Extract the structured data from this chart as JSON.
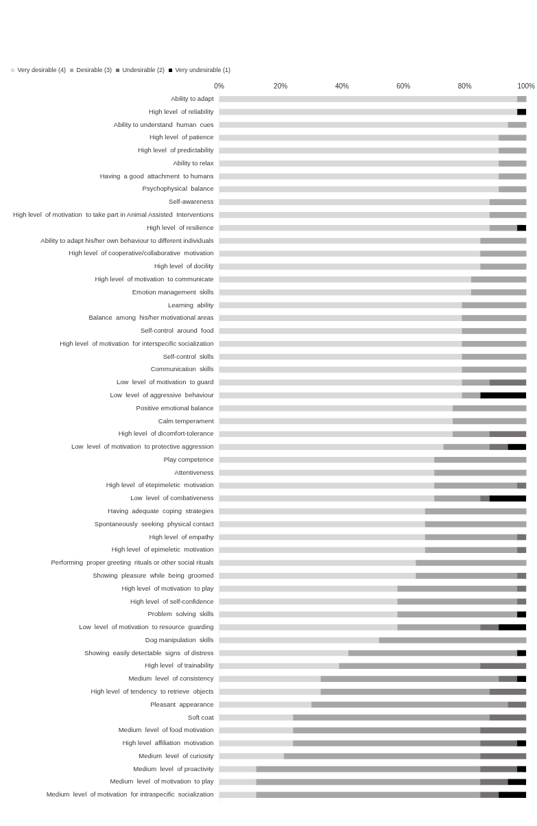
{
  "chart_data": {
    "type": "bar",
    "orientation": "horizontal",
    "stacked": true,
    "legend": "top",
    "grid": false,
    "xlim": [
      0,
      100
    ],
    "xticks": [
      {
        "value": 0,
        "label": "0%"
      },
      {
        "value": 20,
        "label": "20%"
      },
      {
        "value": 40,
        "label": "40%"
      },
      {
        "value": 60,
        "label": "60%"
      },
      {
        "value": 80,
        "label": "80%"
      },
      {
        "value": 100,
        "label": "100%"
      }
    ],
    "categories": [
      "Ability to adapt",
      "High level  of reliability",
      "Ability to understand  human  cues",
      "High level  of patience",
      "High level  of predictability",
      "Ability to relax",
      "Having  a good  attachment  to humans",
      "Psychophysical  balance",
      "Self-awareness",
      "High level  of motivation  to take part in Animal Assisted  Interventions",
      "High level  of resilience",
      "Ability to adapt his/her own behaviour to different individuals",
      "High level  of cooperative/collaborative  motivation",
      "High level  of docility",
      "High level  of motivation  to communicate",
      "Emotion management  skills",
      "Learning  ability",
      "Balance  among  his/her motivational areas",
      "Self-control  around  food",
      "High level  of motivation  for interspecific socialization",
      "Self-control  skills",
      "Communication  skills",
      "Low  level  of motivation  to guard",
      "Low  level  of aggressive  behaviour",
      "Positive emotional balance",
      "Calm temperament",
      "High level  of dicomfort-tolerance",
      "Low  level  of motivation  to protective aggression",
      "Play competence",
      "Attentiveness",
      "High level  of etepimeletic  motivation",
      "Low  level  of combativeness",
      "Having  adequate  coping  strategies",
      "Spontaneously  seeking  physical contact",
      "High level  of empathy",
      "High level  of epimeletic  motivation",
      "Performing  proper greeting  rituals or other social rituals",
      "Showing  pleasure  while  being  groomed",
      "High level  of motivation  to play",
      "High level  of self-confidence",
      "Problem  solving  skills",
      "Low  level  of motivation  to resource  guarding",
      "Dog manipulation  skills",
      "Showing  easily detectable  signs  of distress",
      "High level  of trainability",
      "Medium  level  of consistency",
      "High level  of tendency  to retrieve  objects",
      "Pleasant  appearance",
      "Soft coat",
      "Medium  level  of food motivation",
      "High level  affiliation  motivation",
      "Medium  level  of curiosity",
      "Medium  level  of proactivity",
      "Medium  level  of motivation  to play",
      "Medium  level  of motivation  for intraspecific  socialization"
    ],
    "series": [
      {
        "name": "Very desirable (4)",
        "color": "#d9d9d9",
        "values": [
          97,
          97,
          94,
          91,
          91,
          91,
          91,
          91,
          88,
          88,
          88,
          85,
          85,
          85,
          82,
          82,
          79,
          79,
          79,
          79,
          79,
          79,
          79,
          79,
          76,
          76,
          76,
          73,
          70,
          70,
          70,
          70,
          67,
          67,
          67,
          67,
          64,
          64,
          58,
          58,
          58,
          58,
          52,
          42,
          39,
          33,
          33,
          30,
          24,
          24,
          24,
          21,
          12,
          12,
          12
        ]
      },
      {
        "name": "Desirable (3)",
        "color": "#a6a6a6",
        "values": [
          3,
          0,
          6,
          9,
          9,
          9,
          9,
          9,
          12,
          12,
          9,
          15,
          15,
          15,
          18,
          18,
          21,
          21,
          21,
          21,
          21,
          21,
          9,
          6,
          24,
          24,
          12,
          15,
          30,
          30,
          27,
          15,
          33,
          33,
          30,
          30,
          36,
          33,
          39,
          39,
          39,
          27,
          48,
          55,
          46,
          58,
          55,
          64,
          64,
          61,
          61,
          64,
          73,
          73,
          73
        ]
      },
      {
        "name": "Undesirable (2)",
        "color": "#767171",
        "values": [
          0,
          0,
          0,
          0,
          0,
          0,
          0,
          0,
          0,
          0,
          0,
          0,
          0,
          0,
          0,
          0,
          0,
          0,
          0,
          0,
          0,
          0,
          12,
          0,
          0,
          0,
          12,
          6,
          0,
          0,
          3,
          3,
          0,
          0,
          3,
          3,
          0,
          3,
          3,
          3,
          0,
          6,
          0,
          0,
          15,
          6,
          12,
          6,
          12,
          15,
          12,
          15,
          12,
          9,
          6
        ]
      },
      {
        "name": "Very undesirable (1)",
        "color": "#000000",
        "values": [
          0,
          3,
          0,
          0,
          0,
          0,
          0,
          0,
          0,
          0,
          3,
          0,
          0,
          0,
          0,
          0,
          0,
          0,
          0,
          0,
          0,
          0,
          0,
          15,
          0,
          0,
          0,
          6,
          0,
          0,
          0,
          12,
          0,
          0,
          0,
          0,
          0,
          0,
          0,
          0,
          3,
          9,
          0,
          3,
          0,
          3,
          0,
          0,
          0,
          0,
          3,
          0,
          3,
          6,
          9
        ]
      }
    ]
  }
}
